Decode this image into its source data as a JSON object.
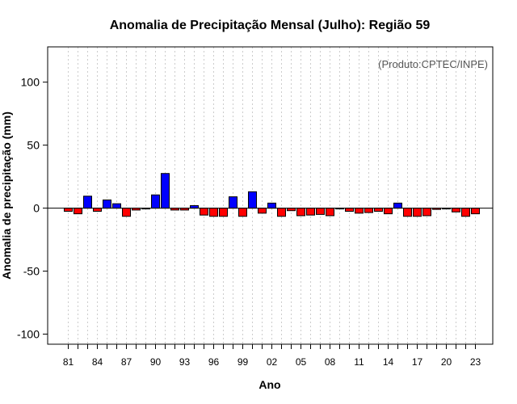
{
  "chart_data": {
    "type": "bar",
    "title": "Anomalia de Precipitação Mensal (Julho): Região 59",
    "xlabel": "Ano",
    "ylabel": "Anomalia de precipitação (mm)",
    "annotation": "(Produto:CPTEC/INPE)",
    "ylim": [
      -108,
      128
    ],
    "yticks": [
      -100,
      -50,
      0,
      50,
      100
    ],
    "yticks_labels": [
      "-100",
      "-50",
      "0",
      "50",
      "100"
    ],
    "xticks_labels": [
      "81",
      "84",
      "87",
      "90",
      "93",
      "96",
      "99",
      "02",
      "05",
      "08",
      "11",
      "14",
      "17",
      "20",
      "23"
    ],
    "grid": "vertical dotted",
    "positive_color": "#0000ff",
    "negative_color": "#ff0000",
    "categories": [
      "1981",
      "1982",
      "1983",
      "1984",
      "1985",
      "1986",
      "1987",
      "1988",
      "1989",
      "1990",
      "1991",
      "1992",
      "1993",
      "1994",
      "1995",
      "1996",
      "1997",
      "1998",
      "1999",
      "2000",
      "2001",
      "2002",
      "2003",
      "2004",
      "2005",
      "2006",
      "2007",
      "2008",
      "2009",
      "2010",
      "2011",
      "2012",
      "2013",
      "2014",
      "2015",
      "2016",
      "2017",
      "2018",
      "2019",
      "2020",
      "2021",
      "2022",
      "2023"
    ],
    "values": [
      -2.5,
      -4.5,
      9.5,
      -2.5,
      6.5,
      3.5,
      -6.5,
      -1.5,
      -0.5,
      10.5,
      27.5,
      -1.5,
      -1.5,
      2.0,
      -5.5,
      -6.5,
      -6.5,
      9.0,
      -6.5,
      13.0,
      -4.0,
      4.0,
      -6.5,
      -2.0,
      -6.0,
      -5.5,
      -5.0,
      -6.0,
      -0.5,
      -2.5,
      -4.0,
      -3.5,
      -2.5,
      -4.5,
      4.0,
      -6.5,
      -6.5,
      -6.0,
      -1.0,
      -0.5,
      -3.0,
      -6.5,
      -4.5
    ]
  }
}
